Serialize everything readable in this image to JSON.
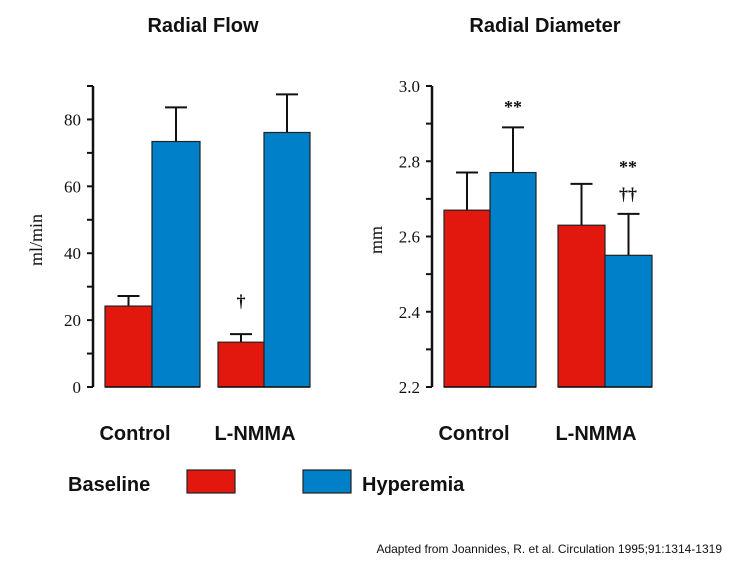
{
  "colors": {
    "baseline": "#e2180f",
    "hyperemia": "#0080c8"
  },
  "legend": [
    {
      "name": "Baseline",
      "color": "#e2180f"
    },
    {
      "name": "Hyperemia",
      "color": "#0080c8"
    }
  ],
  "footnote": "Adapted from Joannides, R. et al. Circulation 1995;91:1314-1319",
  "chart_data": [
    {
      "type": "bar",
      "title": "Radial Flow",
      "ylabel": "ml/min",
      "xlabel": "",
      "ylim": [
        0,
        90
      ],
      "yticks": [
        0,
        20,
        40,
        60,
        80
      ],
      "minor_tick_step": 10,
      "categories": [
        "Control",
        "L-NMMA"
      ],
      "series": [
        {
          "name": "Baseline",
          "values": [
            24.2,
            13.4
          ],
          "error_upper": [
            27.2,
            15.8
          ]
        },
        {
          "name": "Hyperemia",
          "values": [
            73.4,
            76.1
          ],
          "error_upper": [
            83.6,
            87.5
          ]
        }
      ],
      "annotations": [
        {
          "category": "L-NMMA",
          "series": "Baseline",
          "text": "†"
        }
      ]
    },
    {
      "type": "bar",
      "title": "Radial Diameter",
      "ylabel": "mm",
      "xlabel": "",
      "ylim": [
        2.2,
        3.0
      ],
      "yticks": [
        "2.2",
        "2.4",
        "2.6",
        "2.8",
        "3.0"
      ],
      "minor_tick_step": 0.1,
      "categories": [
        "Control",
        "L-NMMA"
      ],
      "series": [
        {
          "name": "Baseline",
          "values": [
            2.67,
            2.63
          ],
          "error_upper": [
            2.77,
            2.74
          ]
        },
        {
          "name": "Hyperemia",
          "values": [
            2.77,
            2.55
          ],
          "error_upper": [
            2.89,
            2.66
          ]
        }
      ],
      "annotations": [
        {
          "category": "Control",
          "series": "Hyperemia",
          "text": "**"
        },
        {
          "category": "L-NMMA",
          "series": "Hyperemia",
          "text": "**"
        },
        {
          "category": "L-NMMA",
          "series": "Hyperemia",
          "text": "††"
        }
      ]
    }
  ]
}
